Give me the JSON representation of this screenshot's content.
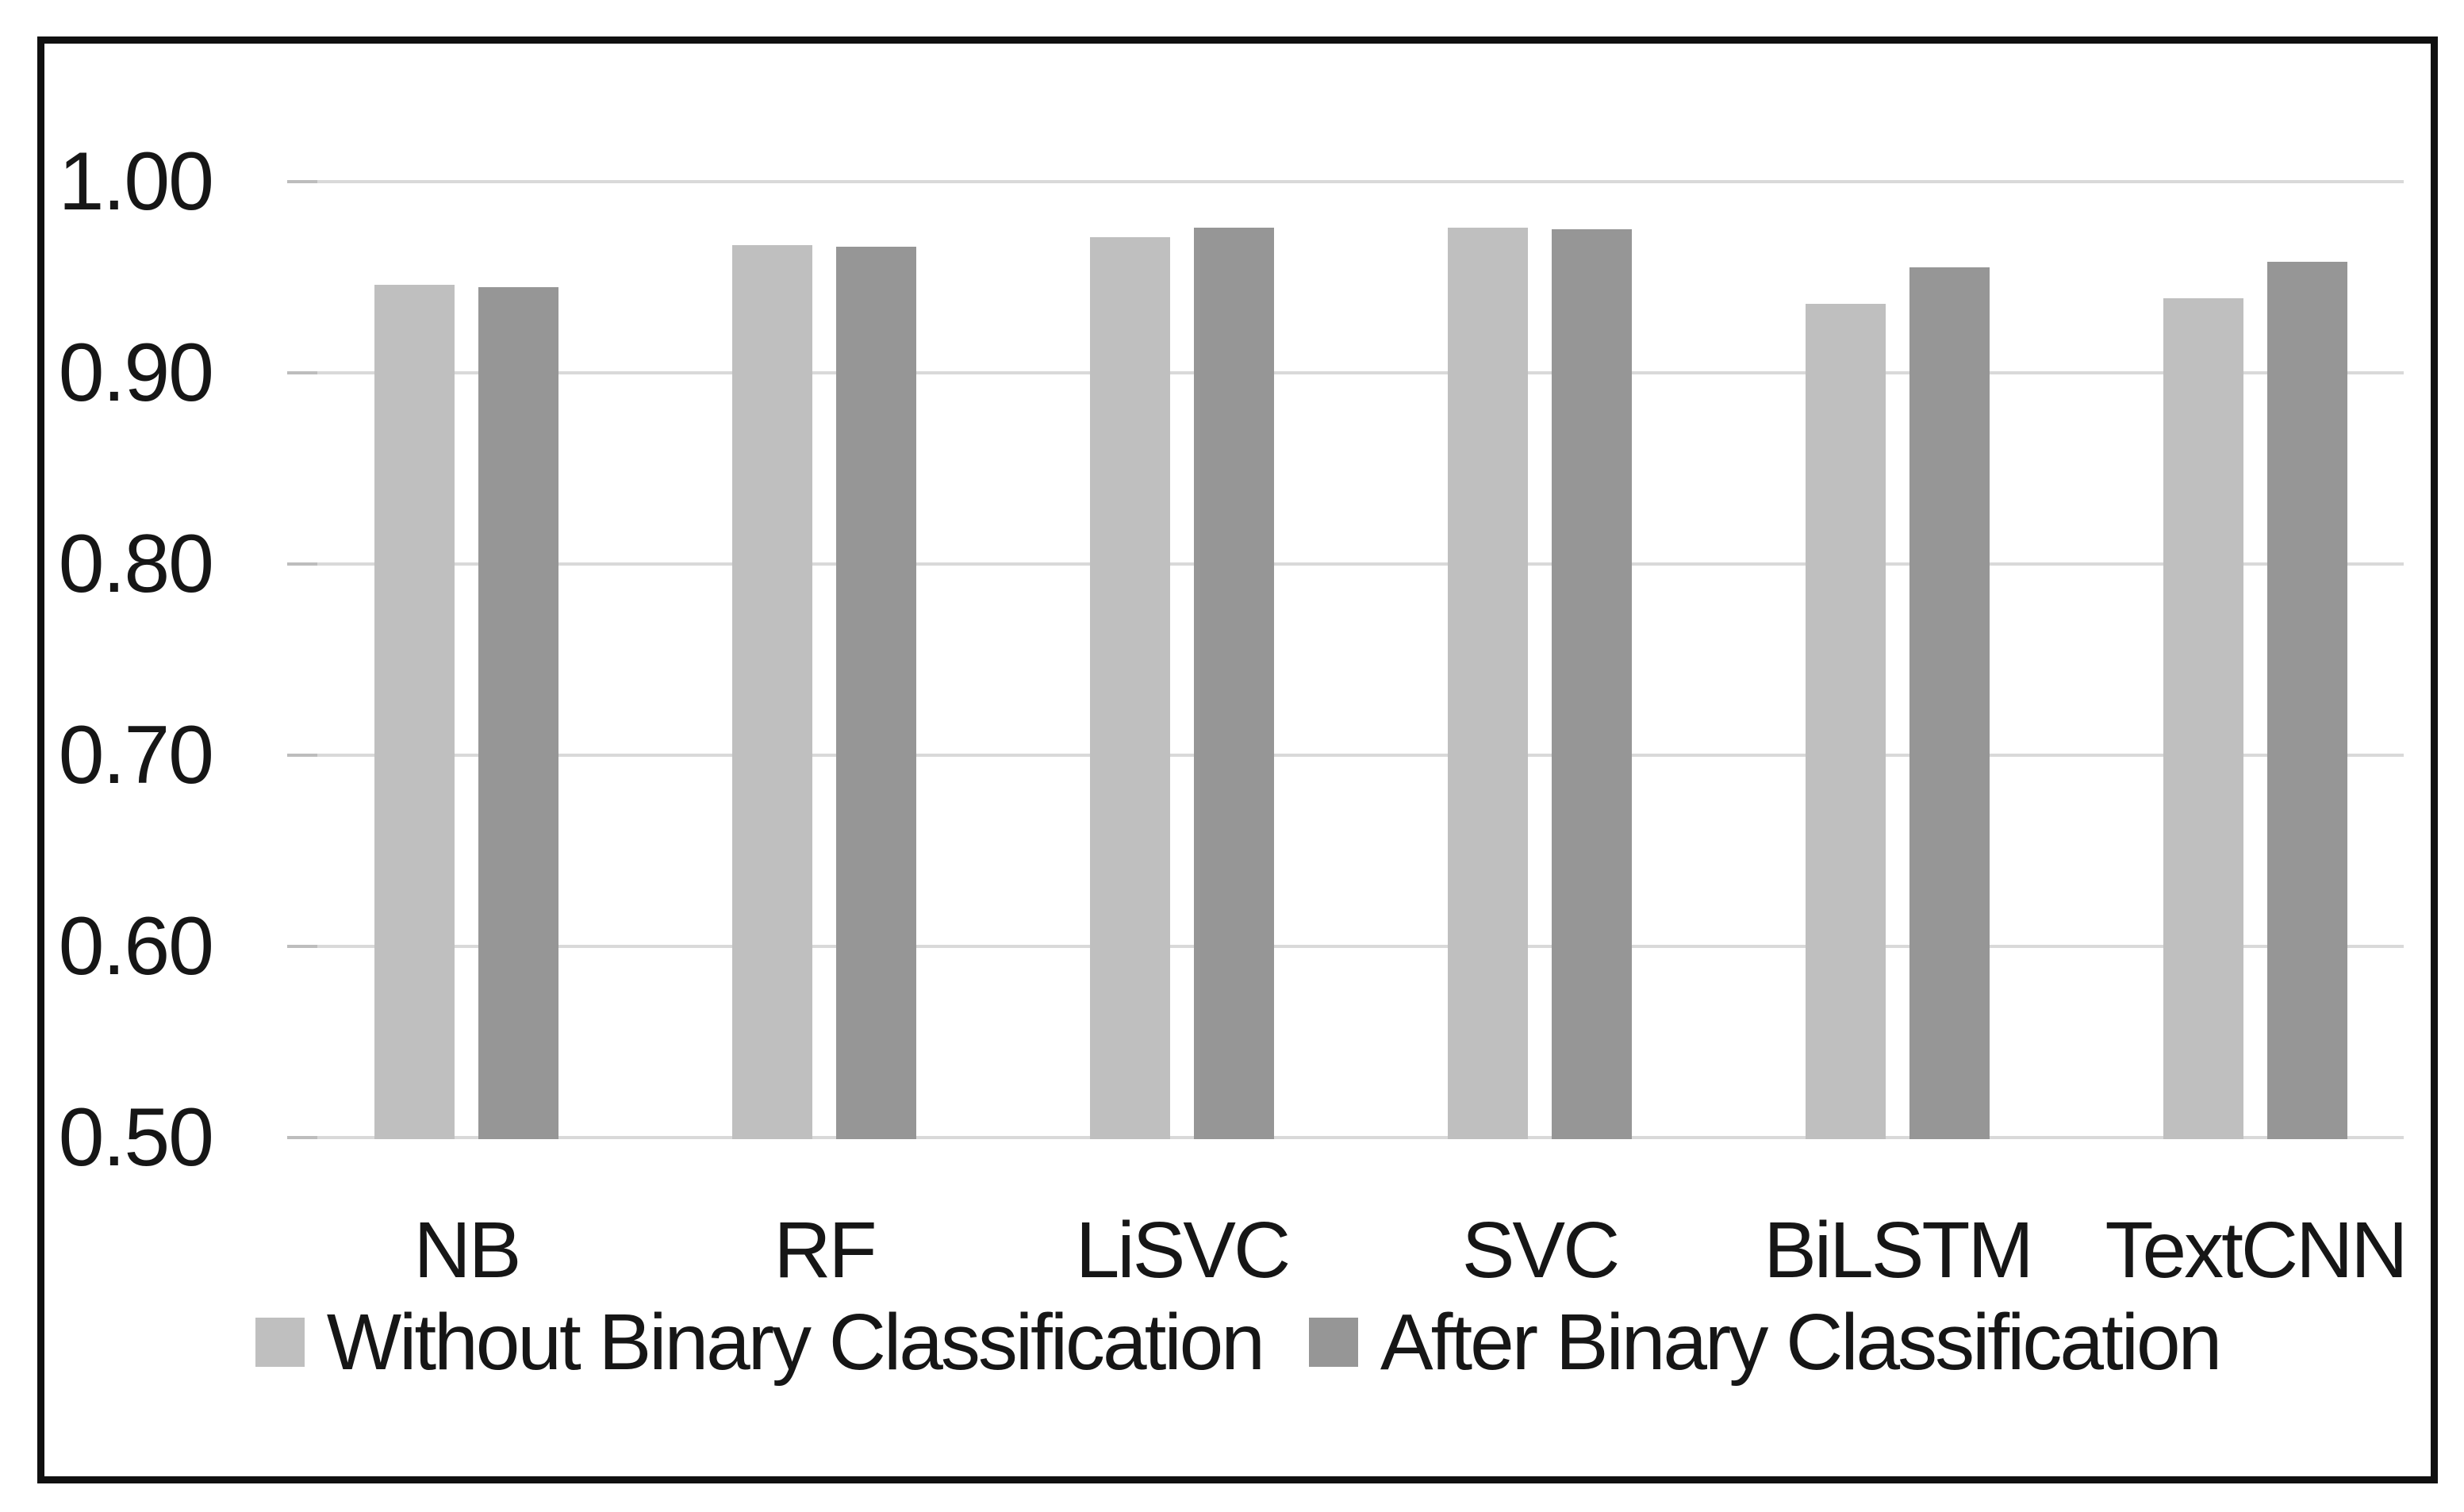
{
  "chart_data": {
    "type": "bar",
    "title": "",
    "xlabel": "",
    "ylabel": "",
    "categories": [
      "NB",
      "RF",
      "LiSVC",
      "SVC",
      "BiLSTM",
      "TextCNN"
    ],
    "series": [
      {
        "name": "Without Binary Classification",
        "color": "#bfbfbf",
        "values": [
          0.946,
          0.967,
          0.971,
          0.976,
          0.936,
          0.939
        ]
      },
      {
        "name": "After Binary Classification",
        "color": "#969696",
        "values": [
          0.945,
          0.966,
          0.976,
          0.975,
          0.955,
          0.958
        ]
      }
    ],
    "ylim": [
      0.5,
      1.0
    ],
    "yticks": [
      1.0,
      0.9,
      0.8,
      0.7,
      0.6,
      0.5
    ],
    "ytick_format": "2-decimals",
    "grid": "horizontal",
    "gridline_color": "#d9d9d9",
    "legend_position": "bottom",
    "text_color": "#161616",
    "frame_border_color": "#101010",
    "background_color": "#ffffff"
  }
}
